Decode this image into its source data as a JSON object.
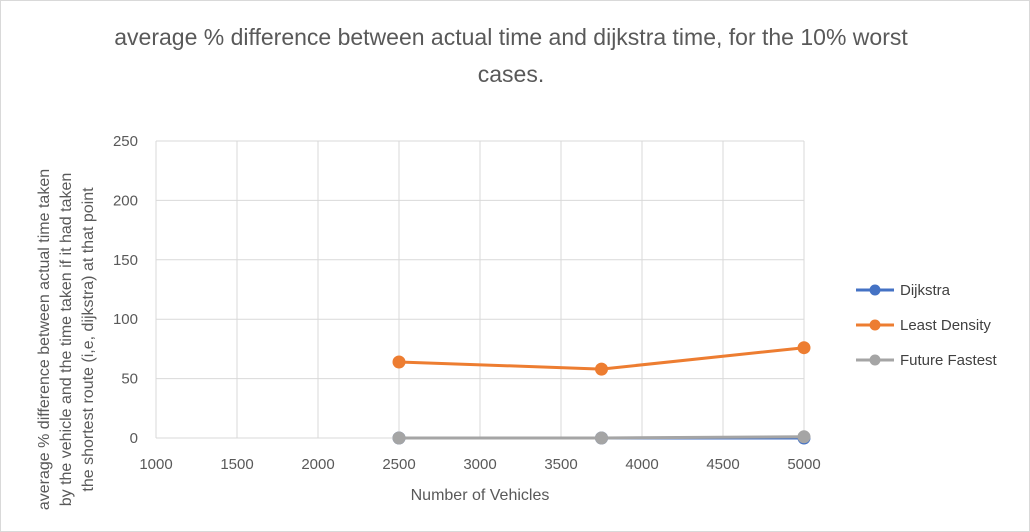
{
  "chart_data": {
    "type": "scatter",
    "title": "average % difference between actual time and dijkstra time, for the 10% worst cases.",
    "xlabel": "Number of Vehicles",
    "ylabel_lines": [
      "average % difference  between actual time taken",
      "by the vehicle and the time taken if it had taken",
      "the shortest route (i,e, dijkstra) at that point"
    ],
    "xlim": [
      1000,
      5000
    ],
    "ylim": [
      0,
      250
    ],
    "x_ticks": [
      1000,
      1500,
      2000,
      2500,
      3000,
      3500,
      4000,
      4500,
      5000
    ],
    "y_ticks": [
      0,
      50,
      100,
      150,
      200,
      250
    ],
    "grid": true,
    "legend_position": "right",
    "series": [
      {
        "name": "Dijkstra",
        "color": "#4472c4",
        "points": [
          [
            2500,
            0
          ],
          [
            3750,
            0
          ],
          [
            5000,
            0
          ]
        ]
      },
      {
        "name": "Least Density",
        "color": "#ed7d31",
        "points": [
          [
            2500,
            64
          ],
          [
            3750,
            58
          ],
          [
            5000,
            76
          ]
        ]
      },
      {
        "name": "Future Fastest",
        "color": "#a5a5a5",
        "points": [
          [
            2500,
            0
          ],
          [
            3750,
            0
          ],
          [
            5000,
            1
          ]
        ]
      }
    ]
  }
}
